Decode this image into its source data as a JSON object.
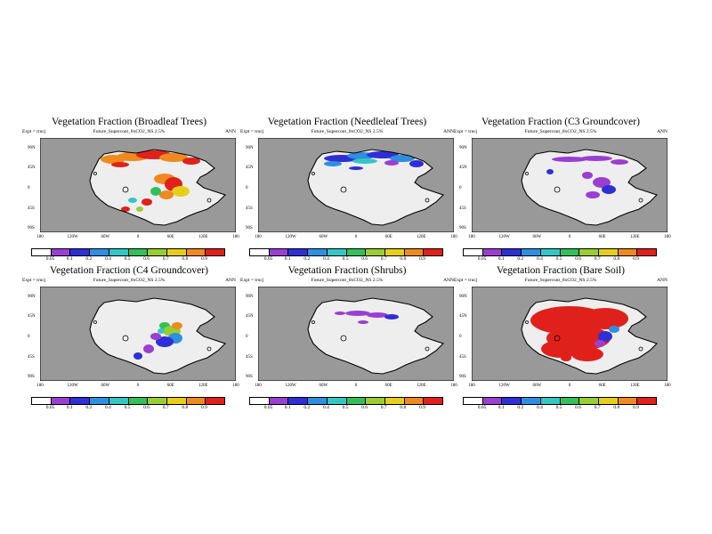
{
  "expt_label": "Expt = trucj",
  "season": "ANN",
  "subtitle": "Future_Supercont_8xCO2_NS 2.5%",
  "lat_labels": [
    "90N",
    "45N",
    "0",
    "45S",
    "90S"
  ],
  "lon_labels": [
    "180",
    "120W",
    "60W",
    "0",
    "60E",
    "120E",
    "180"
  ],
  "colorbar": {
    "labels": [
      "0.05",
      "0.1",
      "0.2",
      "0.4",
      "0.5",
      "0.6",
      "0.7",
      "0.8",
      "0.9"
    ],
    "colors": [
      "#ffffff",
      "#9a3fd1",
      "#2f2fd6",
      "#2e8fe0",
      "#33c6c6",
      "#33bf5a",
      "#9acd32",
      "#e6cf1a",
      "#ee8a1e",
      "#e0201a"
    ]
  },
  "map_colors": {
    "ocean": "#999999",
    "land": "#eeeeee",
    "coast": "#000000"
  },
  "panels": [
    {
      "title": "Vegetation Fraction (Broadleaf Trees)",
      "subtitle": "Future_Supercont_8xCO2_NS 2.5%"
    },
    {
      "title": "Vegetation Fraction (Needleleaf Trees)",
      "subtitle": "Future_Supercont_8xCO2_NS 2.5%"
    },
    {
      "title": "Vegetation Fraction (C3 Groundcover)",
      "subtitle": "Future_Supercont_8xCO2_NS 2.5%"
    },
    {
      "title": "Vegetation Fraction (C4 Groundcover)",
      "subtitle": "Future_Supercont_8xCO2_NS 2.5%"
    },
    {
      "title": "Vegetation Fraction (Shrubs)",
      "subtitle": "Future_Supercont_8xCO2_NS 2.5%"
    },
    {
      "title": "Vegetation Fraction (Bare Soil)",
      "subtitle": "Future_Supercont_8xCO2_NS 2.5%"
    }
  ]
}
